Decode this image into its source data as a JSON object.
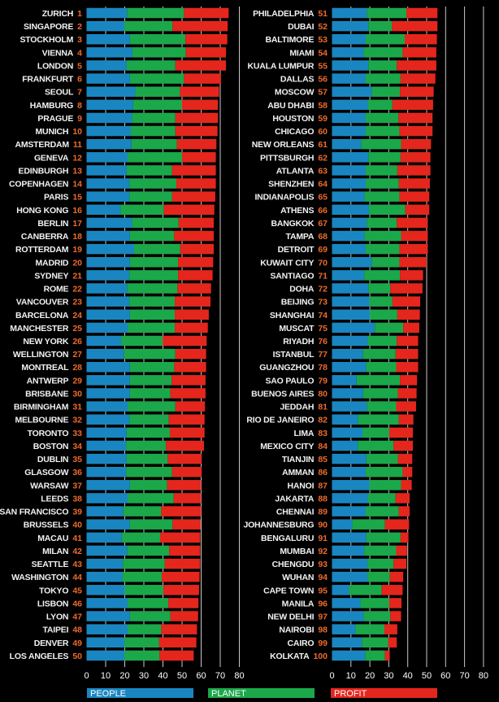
{
  "chart_data": {
    "type": "bar",
    "orientation": "horizontal",
    "stacked": true,
    "xlim": [
      0,
      80
    ],
    "xticks": [
      0,
      10,
      20,
      30,
      40,
      50,
      60,
      70,
      80
    ],
    "grid": true,
    "legend_position": "bottom",
    "colors": {
      "People": "#1a86c1",
      "Planet": "#1ba84a",
      "Profit": "#e4261d",
      "rank": "#ee6a2c"
    },
    "series_names": [
      "People",
      "Planet",
      "Profit"
    ],
    "legend_labels": [
      "PEOPLE",
      "PLANET",
      "PROFIT"
    ],
    "cities": [
      {
        "name": "ZURICH",
        "rank": "1",
        "values": [
          21.2,
          29.8,
          23.4
        ]
      },
      {
        "name": "SINGAPORE",
        "rank": "2",
        "values": [
          19.8,
          25.2,
          28.9
        ]
      },
      {
        "name": "STOCKHOLM",
        "rank": "3",
        "values": [
          22.7,
          29.1,
          21.9
        ]
      },
      {
        "name": "VIENNA",
        "rank": "4",
        "values": [
          24.0,
          28.0,
          21.0
        ]
      },
      {
        "name": "LONDON",
        "rank": "5",
        "values": [
          21.0,
          25.5,
          26.5
        ]
      },
      {
        "name": "FRANKFURT",
        "rank": "6",
        "values": [
          22.7,
          28.3,
          19.4
        ]
      },
      {
        "name": "SEOUL",
        "rank": "7",
        "values": [
          25.5,
          23.4,
          20.5
        ]
      },
      {
        "name": "HAMBURG",
        "rank": "8",
        "values": [
          24.4,
          25.5,
          18.9
        ]
      },
      {
        "name": "PRAGUE",
        "rank": "9",
        "values": [
          23.8,
          22.7,
          22.3
        ]
      },
      {
        "name": "MUNICH",
        "rank": "10",
        "values": [
          23.2,
          23.3,
          22.1
        ]
      },
      {
        "name": "AMSTERDAM",
        "rank": "11",
        "values": [
          23.5,
          23.8,
          20.7
        ]
      },
      {
        "name": "GENEVA",
        "rank": "12",
        "values": [
          21.5,
          28.5,
          17.7
        ]
      },
      {
        "name": "EDINBURGH",
        "rank": "13",
        "values": [
          21.0,
          23.8,
          22.9
        ]
      },
      {
        "name": "COPENHAGEN",
        "rank": "14",
        "values": [
          22.4,
          24.6,
          20.7
        ]
      },
      {
        "name": "PARIS",
        "rank": "15",
        "values": [
          22.4,
          22.4,
          22.6
        ]
      },
      {
        "name": "HONG KONG",
        "rank": "16",
        "values": [
          17.7,
          22.7,
          26.5
        ]
      },
      {
        "name": "BERLIN",
        "rank": "17",
        "values": [
          23.8,
          24.4,
          18.4
        ]
      },
      {
        "name": "CANBERRA",
        "rank": "18",
        "values": [
          22.7,
          23.2,
          20.7
        ]
      },
      {
        "name": "ROTTERDAM",
        "rank": "19",
        "values": [
          24.9,
          24.1,
          17.6
        ]
      },
      {
        "name": "MADRID",
        "rank": "20",
        "values": [
          22.7,
          25.2,
          18.4
        ]
      },
      {
        "name": "SYDNEY",
        "rank": "21",
        "values": [
          22.4,
          25.5,
          18.1
        ]
      },
      {
        "name": "ROME",
        "rank": "22",
        "values": [
          21.2,
          26.4,
          17.6
        ]
      },
      {
        "name": "VANCOUVER",
        "rank": "23",
        "values": [
          22.4,
          23.8,
          18.7
        ]
      },
      {
        "name": "BARCELONA",
        "rank": "24",
        "values": [
          22.7,
          23.5,
          17.8
        ]
      },
      {
        "name": "MANCHESTER",
        "rank": "25",
        "values": [
          21.5,
          24.7,
          17.3
        ]
      },
      {
        "name": "NEW YORK",
        "rank": "26",
        "values": [
          18.1,
          21.8,
          23.0
        ]
      },
      {
        "name": "WELLINGTON",
        "rank": "27",
        "values": [
          19.5,
          27.0,
          16.1
        ]
      },
      {
        "name": "MONTREAL",
        "rank": "28",
        "values": [
          22.7,
          23.2,
          16.7
        ]
      },
      {
        "name": "ANTWERP",
        "rank": "29",
        "values": [
          22.7,
          21.8,
          17.8
        ]
      },
      {
        "name": "BRISBANE",
        "rank": "30",
        "values": [
          22.7,
          21.2,
          18.4
        ]
      },
      {
        "name": "BIRMINGHAM",
        "rank": "31",
        "values": [
          21.5,
          25.0,
          15.5
        ]
      },
      {
        "name": "MELBOURNE",
        "rank": "32",
        "values": [
          22.4,
          20.7,
          18.7
        ]
      },
      {
        "name": "TORONTO",
        "rank": "33",
        "values": [
          21.0,
          22.6,
          18.2
        ]
      },
      {
        "name": "BOSTON",
        "rank": "34",
        "values": [
          20.7,
          20.9,
          19.9
        ]
      },
      {
        "name": "DUBLIN",
        "rank": "35",
        "values": [
          21.0,
          21.5,
          17.8
        ]
      },
      {
        "name": "GLASGOW",
        "rank": "36",
        "values": [
          20.7,
          24.1,
          15.5
        ]
      },
      {
        "name": "WARSAW",
        "rank": "37",
        "values": [
          22.7,
          19.5,
          17.8
        ]
      },
      {
        "name": "LEEDS",
        "rank": "38",
        "values": [
          21.5,
          24.1,
          14.4
        ]
      },
      {
        "name": "SAN FRANCISCO",
        "rank": "39",
        "values": [
          19.3,
          19.8,
          20.9
        ]
      },
      {
        "name": "BRUSSELS",
        "rank": "40",
        "values": [
          22.7,
          22.3,
          14.8
        ]
      },
      {
        "name": "MACAU",
        "rank": "41",
        "values": [
          18.4,
          20.1,
          21.0
        ]
      },
      {
        "name": "MILAN",
        "rank": "42",
        "values": [
          21.2,
          22.1,
          16.2
        ]
      },
      {
        "name": "SEATTLE",
        "rank": "43",
        "values": [
          19.0,
          22.0,
          18.5
        ]
      },
      {
        "name": "WASHINGTON",
        "rank": "44",
        "values": [
          18.7,
          20.7,
          19.8
        ]
      },
      {
        "name": "TOKYO",
        "rank": "45",
        "values": [
          20.1,
          20.1,
          18.7
        ]
      },
      {
        "name": "LISBON",
        "rank": "46",
        "values": [
          21.5,
          21.3,
          15.8
        ]
      },
      {
        "name": "LYON",
        "rank": "47",
        "values": [
          22.7,
          21.2,
          14.5
        ]
      },
      {
        "name": "TAIPEI",
        "rank": "48",
        "values": [
          21.5,
          17.6,
          18.7
        ]
      },
      {
        "name": "DENVER",
        "rank": "49",
        "values": [
          19.8,
          18.2,
          19.5
        ]
      },
      {
        "name": "LOS ANGELES",
        "rank": "50",
        "values": [
          19.8,
          18.4,
          17.9
        ]
      },
      {
        "name": "PHILADELPHIA",
        "rank": "51",
        "values": [
          18.4,
          20.9,
          16.4
        ]
      },
      {
        "name": "DUBAI",
        "rank": "52",
        "values": [
          19.2,
          12.5,
          24.0
        ]
      },
      {
        "name": "BALTIMORE",
        "rank": "53",
        "values": [
          17.8,
          20.6,
          17.0
        ]
      },
      {
        "name": "MIAMI",
        "rank": "54",
        "values": [
          16.7,
          20.6,
          17.8
        ]
      },
      {
        "name": "KUALA LUMPUR",
        "rank": "55",
        "values": [
          19.2,
          15.0,
          20.9
        ]
      },
      {
        "name": "DALLAS",
        "rank": "56",
        "values": [
          17.8,
          18.4,
          18.4
        ]
      },
      {
        "name": "MOSCOW",
        "rank": "57",
        "values": [
          20.9,
          15.0,
          17.8
        ]
      },
      {
        "name": "ABU DHABI",
        "rank": "58",
        "values": [
          18.9,
          13.0,
          21.5
        ]
      },
      {
        "name": "HOUSTON",
        "rank": "59",
        "values": [
          17.8,
          17.3,
          18.0
        ]
      },
      {
        "name": "CHICAGO",
        "rank": "60",
        "values": [
          17.8,
          17.8,
          17.5
        ]
      },
      {
        "name": "NEW ORLEANS",
        "rank": "61",
        "values": [
          15.5,
          21.0,
          15.8
        ]
      },
      {
        "name": "PITTSBURGH",
        "rank": "62",
        "values": [
          19.2,
          17.0,
          15.8
        ]
      },
      {
        "name": "ATLANTA",
        "rank": "63",
        "values": [
          17.8,
          16.7,
          17.5
        ]
      },
      {
        "name": "SHENZHEN",
        "rank": "64",
        "values": [
          17.8,
          17.5,
          16.4
        ]
      },
      {
        "name": "INDIANAPOLIS",
        "rank": "65",
        "values": [
          17.2,
          18.4,
          15.8
        ]
      },
      {
        "name": "ATHENS",
        "rank": "66",
        "values": [
          19.5,
          19.2,
          12.7
        ]
      },
      {
        "name": "BANGKOK",
        "rank": "67",
        "values": [
          18.4,
          15.8,
          16.4
        ]
      },
      {
        "name": "TAMPA",
        "rank": "68",
        "values": [
          17.2,
          19.3,
          14.1
        ]
      },
      {
        "name": "DETROIT",
        "rank": "69",
        "values": [
          17.8,
          17.8,
          15.0
        ]
      },
      {
        "name": "KUWAIT CITY",
        "rank": "70",
        "values": [
          20.9,
          14.7,
          14.4
        ]
      },
      {
        "name": "SANTIAGO",
        "rank": "71",
        "values": [
          17.0,
          18.9,
          12.2
        ]
      },
      {
        "name": "DOHA",
        "rank": "72",
        "values": [
          19.2,
          11.6,
          17.0
        ]
      },
      {
        "name": "BEIJING",
        "rank": "73",
        "values": [
          19.8,
          12.1,
          14.7
        ]
      },
      {
        "name": "SHANGHAI",
        "rank": "74",
        "values": [
          20.1,
          14.4,
          11.9
        ]
      },
      {
        "name": "MUSCAT",
        "rank": "75",
        "values": [
          22.6,
          15.0,
          8.5
        ]
      },
      {
        "name": "RIYADH",
        "rank": "76",
        "values": [
          18.9,
          15.3,
          11.3
        ]
      },
      {
        "name": "ISTANBUL",
        "rank": "77",
        "values": [
          16.4,
          17.2,
          11.9
        ]
      },
      {
        "name": "GUANGZHOU",
        "rank": "78",
        "values": [
          18.1,
          15.8,
          11.6
        ]
      },
      {
        "name": "SAO PAULO",
        "rank": "79",
        "values": [
          13.0,
          22.9,
          9.0
        ]
      },
      {
        "name": "BUENOS AIRES",
        "rank": "80",
        "values": [
          16.4,
          18.4,
          9.9
        ]
      },
      {
        "name": "JEDDAH",
        "rank": "81",
        "values": [
          18.4,
          15.5,
          10.5
        ]
      },
      {
        "name": "RIO DE JANEIRO",
        "rank": "82",
        "values": [
          13.6,
          21.7,
          7.7
        ]
      },
      {
        "name": "LIMA",
        "rank": "83",
        "values": [
          16.1,
          14.1,
          12.5
        ]
      },
      {
        "name": "MEXICO CITY",
        "rank": "84",
        "values": [
          13.6,
          18.9,
          10.2
        ]
      },
      {
        "name": "TIANJIN",
        "rank": "85",
        "values": [
          18.1,
          16.7,
          7.6
        ]
      },
      {
        "name": "AMMAN",
        "rank": "86",
        "values": [
          17.8,
          19.5,
          5.1
        ]
      },
      {
        "name": "HANOI",
        "rank": "87",
        "values": [
          19.8,
          16.7,
          5.6
        ]
      },
      {
        "name": "JAKARTA",
        "rank": "88",
        "values": [
          18.9,
          14.7,
          7.4
        ]
      },
      {
        "name": "CHENNAI",
        "rank": "89",
        "values": [
          17.8,
          17.5,
          5.7
        ]
      },
      {
        "name": "JOHANNESBURG",
        "rank": "90",
        "values": [
          10.7,
          17.3,
          12.7
        ]
      },
      {
        "name": "BENGALURU",
        "rank": "91",
        "values": [
          18.1,
          18.1,
          4.2
        ]
      },
      {
        "name": "MUMBAI",
        "rank": "92",
        "values": [
          17.0,
          16.9,
          5.7
        ]
      },
      {
        "name": "CHENGDU",
        "rank": "93",
        "values": [
          18.7,
          13.8,
          6.8
        ]
      },
      {
        "name": "WUHAN",
        "rank": "94",
        "values": [
          18.7,
          11.8,
          7.1
        ]
      },
      {
        "name": "CAPE TOWN",
        "rank": "95",
        "values": [
          9.0,
          17.3,
          11.0
        ]
      },
      {
        "name": "MANILA",
        "rank": "96",
        "values": [
          15.0,
          15.2,
          6.5
        ]
      },
      {
        "name": "NEW DELHI",
        "rank": "97",
        "values": [
          16.7,
          14.1,
          5.7
        ]
      },
      {
        "name": "NAIROBI",
        "rank": "98",
        "values": [
          12.4,
          15.3,
          6.8
        ]
      },
      {
        "name": "CAIRO",
        "rank": "99",
        "values": [
          15.8,
          13.9,
          4.5
        ]
      },
      {
        "name": "KOLKATA",
        "rank": "100",
        "values": [
          17.5,
          10.5,
          2.5
        ]
      }
    ]
  }
}
